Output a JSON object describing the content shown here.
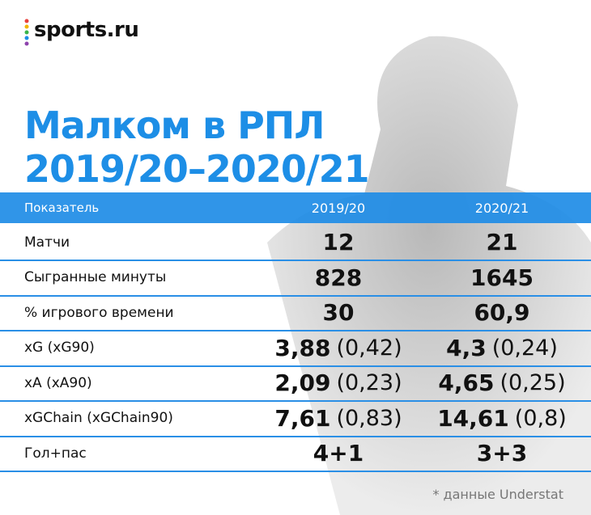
{
  "logo": "sports.ru",
  "title": [
    "Малком в РПЛ",
    "2019/20–2020/21"
  ],
  "table": {
    "header": [
      "Показатель",
      "2019/20",
      "2020/21"
    ],
    "rows": [
      {
        "label": "Матчи",
        "values": [
          {
            "main": "12"
          },
          {
            "main": "21"
          }
        ]
      },
      {
        "label": "Сыгранные минуты",
        "values": [
          {
            "main": "828"
          },
          {
            "main": "1645"
          }
        ]
      },
      {
        "label": "% игрового времени",
        "values": [
          {
            "main": "30"
          },
          {
            "main": "60,9"
          }
        ]
      },
      {
        "label": "xG (xG90)",
        "values": [
          {
            "main": "3,88",
            "sub": "(0,42)"
          },
          {
            "main": "4,3",
            "sub": "(0,24)"
          }
        ]
      },
      {
        "label": "xA (xA90)",
        "values": [
          {
            "main": "2,09",
            "sub": "(0,23)"
          },
          {
            "main": "4,65",
            "sub": "(0,25)"
          }
        ]
      },
      {
        "label": "xGChain (xGChain90)",
        "values": [
          {
            "main": "7,61",
            "sub": "(0,83)"
          },
          {
            "main": "14,61",
            "sub": "(0,8)"
          }
        ]
      },
      {
        "label": "Гол+пас",
        "values": [
          {
            "main": "4+1"
          },
          {
            "main": "3+3"
          }
        ]
      }
    ]
  },
  "footnote": "* данные Understat"
}
